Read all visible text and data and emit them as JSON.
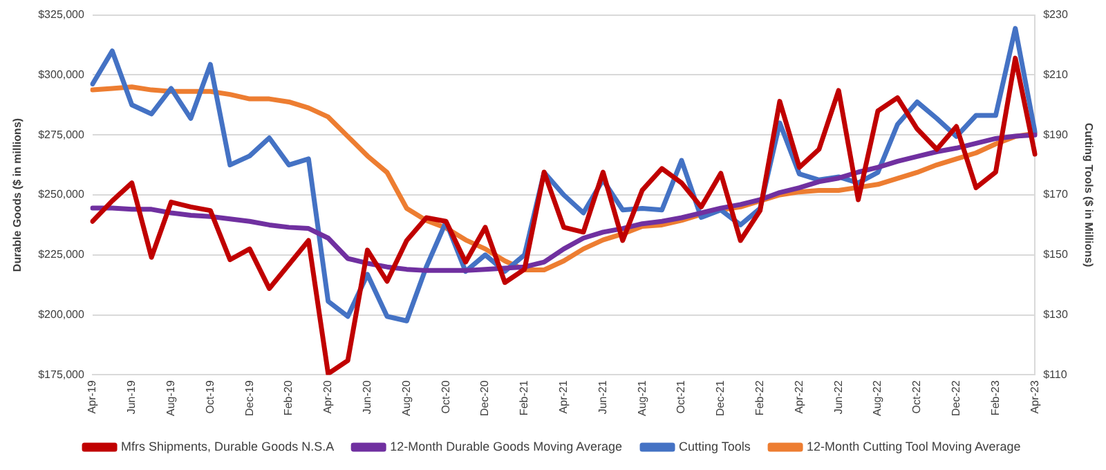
{
  "chart_data": {
    "type": "line",
    "ylabel": "Durable Goods ($ in millions)",
    "y2label": "Cutting Tools ($ in Millions)",
    "categories": [
      "Apr-19",
      null,
      "Jun-19",
      null,
      "Aug-19",
      null,
      "Oct-19",
      null,
      "Dec-19",
      null,
      "Feb-20",
      null,
      "Apr-20",
      null,
      "Jun-20",
      null,
      "Aug-20",
      null,
      "Oct-20",
      null,
      "Dec-20",
      null,
      "Feb-21",
      null,
      "Apr-21",
      null,
      "Jun-21",
      null,
      "Aug-21",
      null,
      "Oct-21",
      null,
      "Dec-21",
      null,
      "Feb-22",
      null,
      "Apr-22",
      null,
      "Jun-22",
      null,
      "Aug-22",
      null,
      "Oct-22",
      null,
      "Dec-22",
      null,
      "Feb-23",
      null,
      "Apr-23"
    ],
    "series": [
      {
        "name": "Mfrs Shipments, Durable Goods N.S.A",
        "color": "#c00000",
        "values": [
          239000,
          247500,
          255000,
          224000,
          247000,
          245000,
          243500,
          223000,
          227500,
          211000,
          221000,
          231000,
          175500,
          181000,
          227000,
          214000,
          231000,
          240500,
          239000,
          222000,
          236500,
          213500,
          219000,
          259500,
          236500,
          234500,
          259500,
          231000,
          252000,
          261000,
          255000,
          245000,
          259000,
          231000,
          243500,
          289000,
          261500,
          269000,
          293500,
          248000,
          285000,
          290500,
          277500,
          269000,
          278500,
          253000,
          259500,
          307000,
          267000
        ]
      },
      {
        "name": "12-Month Durable Goods Moving Average",
        "color": "#7030a0",
        "values": [
          244500,
          244500,
          244000,
          244000,
          242500,
          241500,
          241000,
          240000,
          239000,
          237500,
          236500,
          236000,
          232000,
          223500,
          221500,
          220000,
          219000,
          218500,
          218500,
          218500,
          219000,
          219500,
          220000,
          222000,
          227500,
          232000,
          234500,
          236000,
          238000,
          239000,
          240500,
          242500,
          244500,
          246000,
          248000,
          251000,
          253000,
          255500,
          257000,
          259500,
          261500,
          264000,
          266000,
          268000,
          269500,
          271500,
          273500,
          274500,
          275000
        ]
      },
      {
        "name": "Cutting Tools",
        "color": "#4472c4",
        "axis": "y2",
        "values": [
          207,
          218,
          200,
          197,
          205.5,
          195.5,
          213.5,
          180,
          183,
          189,
          180,
          182,
          134.5,
          129.5,
          143.5,
          129.5,
          128,
          146,
          161,
          144.5,
          150,
          144.5,
          150,
          177.5,
          170,
          164,
          175,
          165,
          165.5,
          165,
          181.5,
          162.5,
          165,
          160,
          165.5,
          194,
          177,
          175,
          176,
          174,
          177.5,
          193.5,
          201,
          195.5,
          189.5,
          196.5,
          196.5,
          225.5,
          191
        ]
      },
      {
        "name": "12-Month Cutting Tool Moving Average",
        "color": "#ed7d31",
        "axis": "y2",
        "values": [
          205,
          205.5,
          206,
          205,
          204.5,
          204.5,
          204.5,
          203.5,
          202,
          202,
          201,
          199,
          196,
          189.5,
          183,
          177.5,
          165.5,
          161.5,
          159,
          155,
          152,
          148,
          145,
          145,
          148,
          152,
          155,
          157,
          159.5,
          160,
          161.5,
          163.5,
          165,
          166,
          168,
          170,
          171,
          171.5,
          171.5,
          172.5,
          173.5,
          175.5,
          177.5,
          180,
          182,
          184,
          187,
          189.5,
          190.5
        ]
      }
    ],
    "ylim": [
      175000,
      325000
    ],
    "yticks": [
      {
        "value": 175000,
        "label": "$175,000"
      },
      {
        "value": 200000,
        "label": "$200,000"
      },
      {
        "value": 225000,
        "label": "$225,000"
      },
      {
        "value": 250000,
        "label": "$250,000"
      },
      {
        "value": 275000,
        "label": "$275,000"
      },
      {
        "value": 300000,
        "label": "$300,000"
      },
      {
        "value": 325000,
        "label": "$325,000"
      }
    ],
    "y2lim": [
      110,
      230
    ],
    "y2ticks": [
      {
        "value": 110,
        "label": "$110"
      },
      {
        "value": 130,
        "label": "$130"
      },
      {
        "value": 150,
        "label": "$150"
      },
      {
        "value": 170,
        "label": "$170"
      },
      {
        "value": 190,
        "label": "$190"
      },
      {
        "value": 210,
        "label": "$210"
      },
      {
        "value": 230,
        "label": "$230"
      }
    ],
    "grid": "y",
    "legend": "bottom",
    "marker": "none",
    "line_style": "solid"
  }
}
